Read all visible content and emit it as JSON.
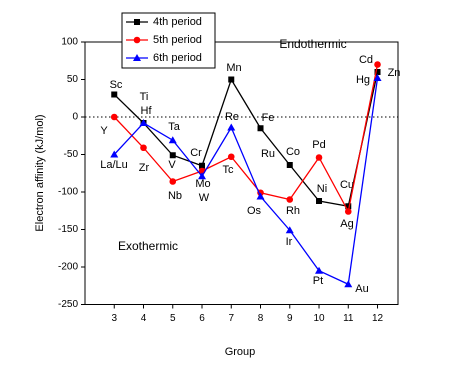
{
  "chart_data": {
    "type": "line",
    "x_label": "Group",
    "y_label": "Electron affinity (kJ/mol)",
    "annotations": [
      "Endothermic",
      "Exothermic"
    ],
    "x": [
      3,
      4,
      5,
      6,
      7,
      8,
      9,
      10,
      11,
      12
    ],
    "xlim": [
      2,
      12.7
    ],
    "xticks": [
      3,
      4,
      5,
      6,
      7,
      8,
      9,
      10,
      11,
      12
    ],
    "ylim": [
      -250,
      100
    ],
    "yticks": [
      -250,
      -200,
      -150,
      -100,
      -50,
      0,
      50,
      100
    ],
    "series": [
      {
        "name": "4th period",
        "color": "#000000",
        "marker": "square",
        "values": [
          30,
          -8,
          -51,
          -65,
          50,
          -15,
          -64,
          -112,
          -119,
          60
        ],
        "labels": [
          "Sc",
          "Ti",
          "V",
          "Cr",
          "Mn",
          "Fe",
          "Co",
          "Ni",
          "Cu",
          "Zn"
        ]
      },
      {
        "name": "5th period",
        "color": "#ff0000",
        "marker": "circle",
        "values": [
          0,
          -41,
          -86,
          -72,
          -53,
          -101,
          -110,
          -54,
          -126,
          70
        ],
        "labels": [
          "Y",
          "Zr",
          "Nb",
          "Mo",
          "Tc",
          "Ru",
          "Rh",
          "Pd",
          "Ag",
          "Cd"
        ]
      },
      {
        "name": "6th period",
        "color": "#0000ff",
        "marker": "triangle",
        "values": [
          -50,
          -8,
          -31,
          -79,
          -14,
          -106,
          -151,
          -205,
          -223,
          52
        ],
        "labels": [
          "La/Lu",
          "Hf",
          "Ta",
          "W",
          "Re",
          "Os",
          "Ir",
          "Pt",
          "Au",
          "Hg"
        ]
      }
    ]
  }
}
